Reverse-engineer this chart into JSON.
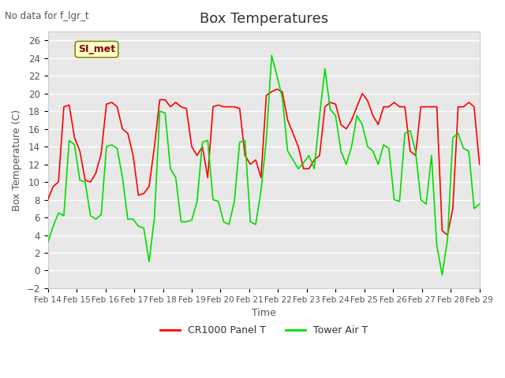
{
  "title": "Box Temperatures",
  "xlabel": "Time",
  "ylabel": "Box Temperature (C)",
  "no_data_text": "No data for f_lgr_t",
  "si_met_label": "SI_met",
  "ylim": [
    -2,
    27
  ],
  "yticks": [
    -2,
    0,
    2,
    4,
    6,
    8,
    10,
    12,
    14,
    16,
    18,
    20,
    22,
    24,
    26
  ],
  "x_tick_labels": [
    "Feb 14",
    "Feb 15",
    "Feb 16",
    "Feb 17",
    "Feb 18",
    "Feb 19",
    "Feb 20",
    "Feb 21",
    "Feb 22",
    "Feb 23",
    "Feb 24",
    "Feb 25",
    "Feb 26",
    "Feb 27",
    "Feb 28",
    "Feb 29"
  ],
  "plot_bg_color": "#e8e8e8",
  "grid_color": "white",
  "cr1000_color": "red",
  "tower_color": "#00dd00",
  "legend_labels": [
    "CR1000 Panel T",
    "Tower Air T"
  ],
  "cr1000_data": [
    8.0,
    9.5,
    10.0,
    18.5,
    18.7,
    15.0,
    13.5,
    10.2,
    10.0,
    11.0,
    13.2,
    18.8,
    19.0,
    18.5,
    16.0,
    15.5,
    13.0,
    8.5,
    8.7,
    9.5,
    14.0,
    19.3,
    19.3,
    18.5,
    19.0,
    18.5,
    18.3,
    14.0,
    13.0,
    14.0,
    10.5,
    18.5,
    18.7,
    18.5,
    18.5,
    18.5,
    18.3,
    13.0,
    12.0,
    12.5,
    10.5,
    19.8,
    20.2,
    20.5,
    20.2,
    17.0,
    15.5,
    14.0,
    11.5,
    11.5,
    12.5,
    13.0,
    18.5,
    19.0,
    18.8,
    16.5,
    16.0,
    17.0,
    18.5,
    20.0,
    19.2,
    17.5,
    16.5,
    18.5,
    18.5,
    19.0,
    18.5,
    18.5,
    13.5,
    13.0,
    18.5,
    18.5,
    18.5,
    18.5,
    4.5,
    4.0,
    7.0,
    18.5,
    18.5,
    19.0,
    18.5,
    12.0
  ],
  "tower_data": [
    3.2,
    5.0,
    6.5,
    6.2,
    14.7,
    14.2,
    10.2,
    10.0,
    6.2,
    5.8,
    6.3,
    14.0,
    14.2,
    13.8,
    10.5,
    5.8,
    5.8,
    5.0,
    4.8,
    1.0,
    6.0,
    18.0,
    17.8,
    11.5,
    10.5,
    5.5,
    5.5,
    5.7,
    7.8,
    14.5,
    14.7,
    8.0,
    7.8,
    5.5,
    5.2,
    7.8,
    14.5,
    14.7,
    5.5,
    5.2,
    9.0,
    14.8,
    24.3,
    22.0,
    19.5,
    13.5,
    12.5,
    11.5,
    12.2,
    13.0,
    11.5,
    17.5,
    22.8,
    18.2,
    17.5,
    13.5,
    12.0,
    14.0,
    17.5,
    16.5,
    14.0,
    13.5,
    12.0,
    14.2,
    13.8,
    8.0,
    7.8,
    15.5,
    15.8,
    13.5,
    8.0,
    7.5,
    13.0,
    2.8,
    -0.5,
    3.5,
    15.0,
    15.5,
    13.8,
    13.5,
    7.0,
    7.5
  ]
}
